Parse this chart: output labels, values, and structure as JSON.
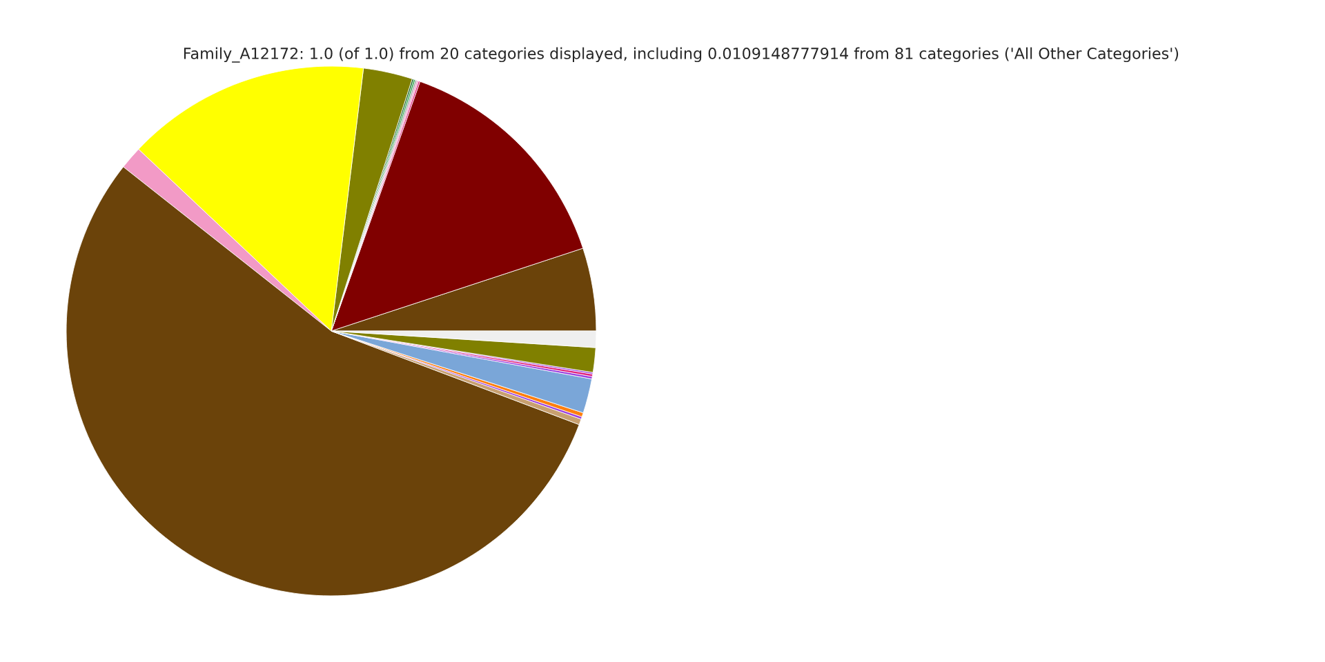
{
  "chart_data": {
    "type": "pie",
    "title": "Family_A12172: 1.0 (of 1.0) from 20 categories displayed, including 0.0109148777914 from 81 categories ('All Other Categories')",
    "categories": [
      null,
      null,
      null,
      null,
      null,
      null,
      null,
      null,
      null,
      null,
      null,
      null,
      null,
      null,
      null,
      null,
      null,
      null,
      null,
      null
    ],
    "values": [
      5.06,
      14.5,
      0.1,
      0.1,
      0.1,
      0.1,
      0.1,
      3.0,
      14.9,
      1.4,
      54.89,
      0.35,
      0.15,
      0.25,
      2.1,
      0.15,
      0.15,
      0.1,
      1.5,
      1.0
    ],
    "colors": [
      "#6b430a",
      "#800000",
      "#e0207a",
      "#f29ac6",
      "#a0a0a0",
      "#20a040",
      "#106020",
      "#808000",
      "#ffff00",
      "#f29ac6",
      "#6b430a",
      "#c8a070",
      "#9b40e0",
      "#ff7f0e",
      "#7aa6d8",
      "#9b40e0",
      "#e0207a",
      "#9b40e0",
      "#808000",
      "#efefef"
    ]
  }
}
